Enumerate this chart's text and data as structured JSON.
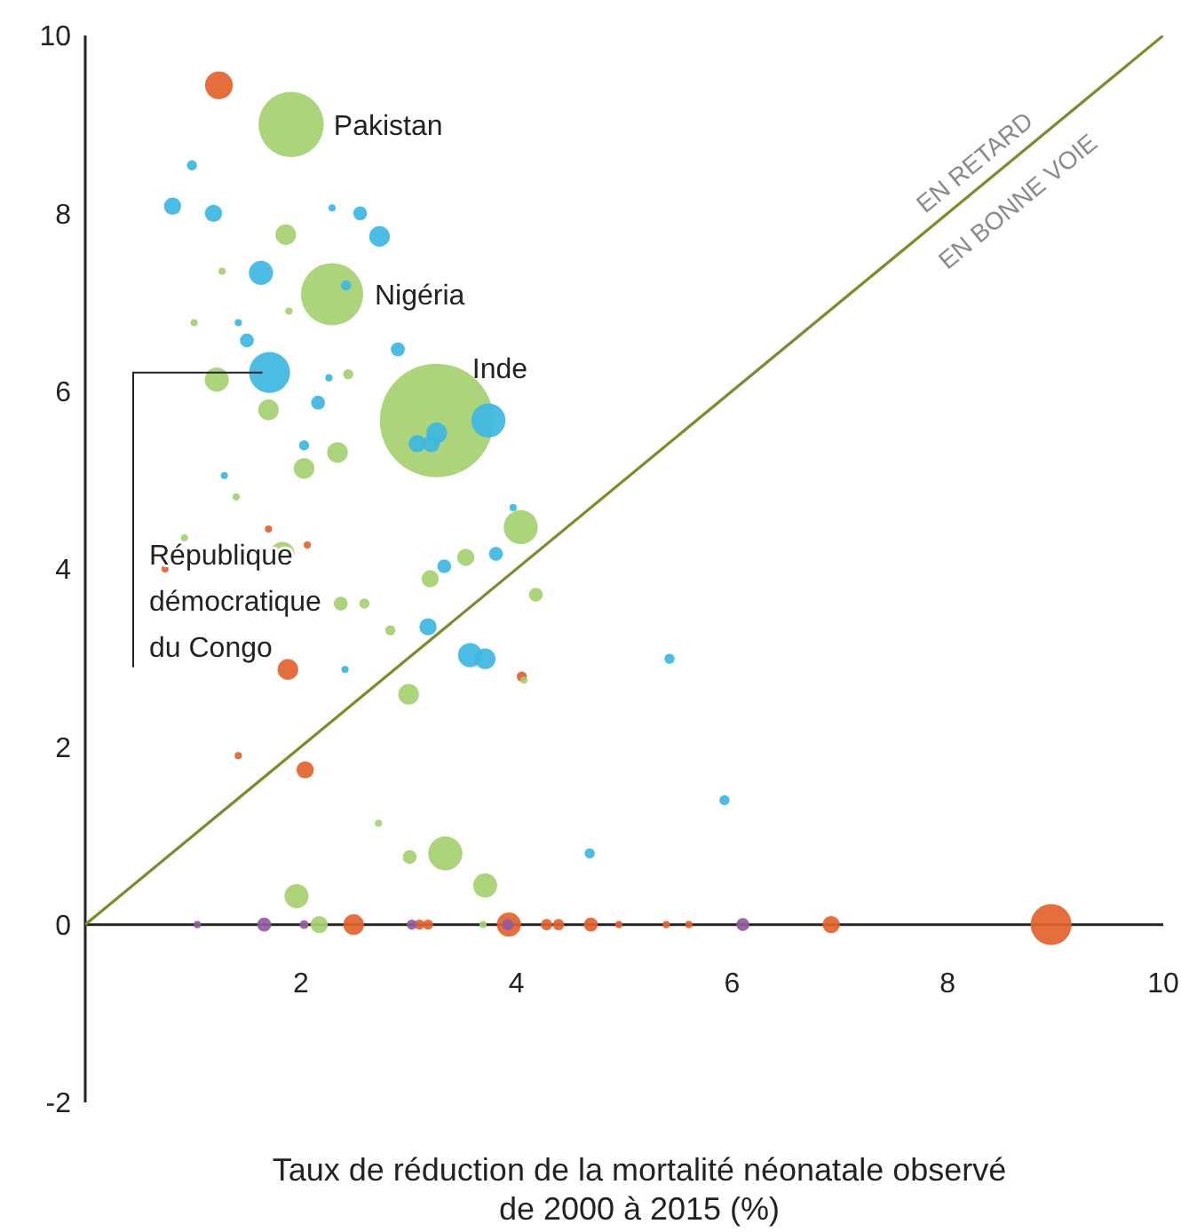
{
  "chart_data": {
    "type": "bubble",
    "xlabel": "Taux de réduction de la mortalité néonatale observé de 2000 à 2015 (%)",
    "xlim": [
      0,
      10
    ],
    "xticks": [
      2,
      4,
      6,
      8,
      10
    ],
    "ylim": [
      -2,
      10
    ],
    "yticks": [
      -2,
      0,
      2,
      4,
      6,
      8,
      10
    ],
    "series": [
      {
        "color": "#e3622c",
        "x": [
          1.24,
          1.88,
          2.04,
          1.42,
          1.7,
          2.06,
          0.74,
          4.05,
          8.96,
          3.93,
          2.49,
          6.92,
          4.28,
          4.39,
          4.69,
          3.1,
          3.18,
          4.95,
          5.39,
          5.6
        ],
        "values": [
          9.44,
          2.87,
          1.74,
          1.9,
          4.45,
          4.27,
          4.0,
          2.79,
          0,
          0,
          0,
          0,
          0,
          0,
          0,
          0,
          0,
          0,
          0,
          0
        ],
        "sizes": [
          0.06,
          0.033,
          0.023,
          0.004,
          0.004,
          0.004,
          0.004,
          0.008,
          0.13,
          0.045,
          0.033,
          0.023,
          0.01,
          0.01,
          0.015,
          0.008,
          0.008,
          0.004,
          0.004,
          0.004
        ]
      },
      {
        "color": "#915b9e",
        "x": [
          1.04,
          1.66,
          2.03,
          3.03,
          3.92,
          6.1
        ],
        "values": [
          0,
          0,
          0,
          0,
          0,
          0
        ],
        "sizes": [
          0.004,
          0.015,
          0.006,
          0.008,
          0.01,
          0.013
        ]
      },
      {
        "color": "#a4d070",
        "x": [
          1.91,
          2.29,
          3.26,
          1.86,
          1.27,
          1.01,
          1.89,
          1.22,
          1.7,
          2.44,
          2.03,
          2.34,
          1.4,
          4.04,
          1.83,
          3.53,
          3.2,
          4.18,
          2.37,
          2.59,
          2.83,
          3.0,
          2.72,
          3.01,
          3.34,
          3.71,
          1.96,
          4.07,
          0.92,
          2.17,
          3.69
        ],
        "values": [
          9.0,
          7.09,
          5.67,
          7.76,
          7.35,
          6.77,
          6.9,
          6.13,
          5.79,
          6.19,
          5.13,
          5.31,
          4.81,
          4.47,
          4.17,
          4.13,
          3.89,
          3.71,
          3.61,
          3.61,
          3.31,
          2.59,
          1.14,
          0.76,
          0.8,
          0.44,
          0.32,
          2.75,
          4.35,
          0,
          0
        ],
        "sizes": [
          0.33,
          0.3,
          1,
          0.033,
          0.004,
          0.004,
          0.004,
          0.045,
          0.033,
          0.008,
          0.033,
          0.033,
          0.004,
          0.09,
          0.045,
          0.023,
          0.023,
          0.015,
          0.015,
          0.008,
          0.008,
          0.033,
          0.004,
          0.015,
          0.09,
          0.045,
          0.045,
          0.004,
          0.004,
          0.023,
          0.004
        ]
      },
      {
        "color": "#3cb7e2",
        "x": [
          0.99,
          0.81,
          1.19,
          2.29,
          2.55,
          2.73,
          1.63,
          2.42,
          1.42,
          1.5,
          2.9,
          1.71,
          2.26,
          2.16,
          2.03,
          1.29,
          3.08,
          3.21,
          3.26,
          3.74,
          3.97,
          3.81,
          3.33,
          3.18,
          3.57,
          3.71,
          2.41,
          5.42,
          5.93,
          4.68
        ],
        "values": [
          8.54,
          8.08,
          8.0,
          8.06,
          8.0,
          7.74,
          7.33,
          7.19,
          6.77,
          6.57,
          6.47,
          6.21,
          6.15,
          5.87,
          5.39,
          5.05,
          5.41,
          5.41,
          5.53,
          5.67,
          4.69,
          4.17,
          4.03,
          3.35,
          3.03,
          2.99,
          2.87,
          2.99,
          1.4,
          0.8
        ],
        "sizes": [
          0.008,
          0.023,
          0.023,
          0.004,
          0.015,
          0.033,
          0.045,
          0.008,
          0.004,
          0.015,
          0.015,
          0.13,
          0.004,
          0.015,
          0.008,
          0.004,
          0.023,
          0.023,
          0.033,
          0.09,
          0.004,
          0.015,
          0.015,
          0.023,
          0.045,
          0.033,
          0.004,
          0.008,
          0.008,
          0.008
        ]
      },
      {
        "type": "line",
        "color": "#7b8c2a",
        "x": [
          0,
          10
        ],
        "values": [
          0,
          10
        ]
      }
    ],
    "annotations": [
      {
        "text": "Pakistan",
        "x": 1.91,
        "y": 9.0
      },
      {
        "text": "Nigéria",
        "x": 2.29,
        "y": 7.09
      },
      {
        "text": "Inde",
        "x": 3.26,
        "y": 5.67
      },
      {
        "text": "République démocratique du Congo",
        "x": 1.71,
        "y": 6.21
      },
      "EN RETARD",
      "EN BONNE VOIE"
    ]
  }
}
